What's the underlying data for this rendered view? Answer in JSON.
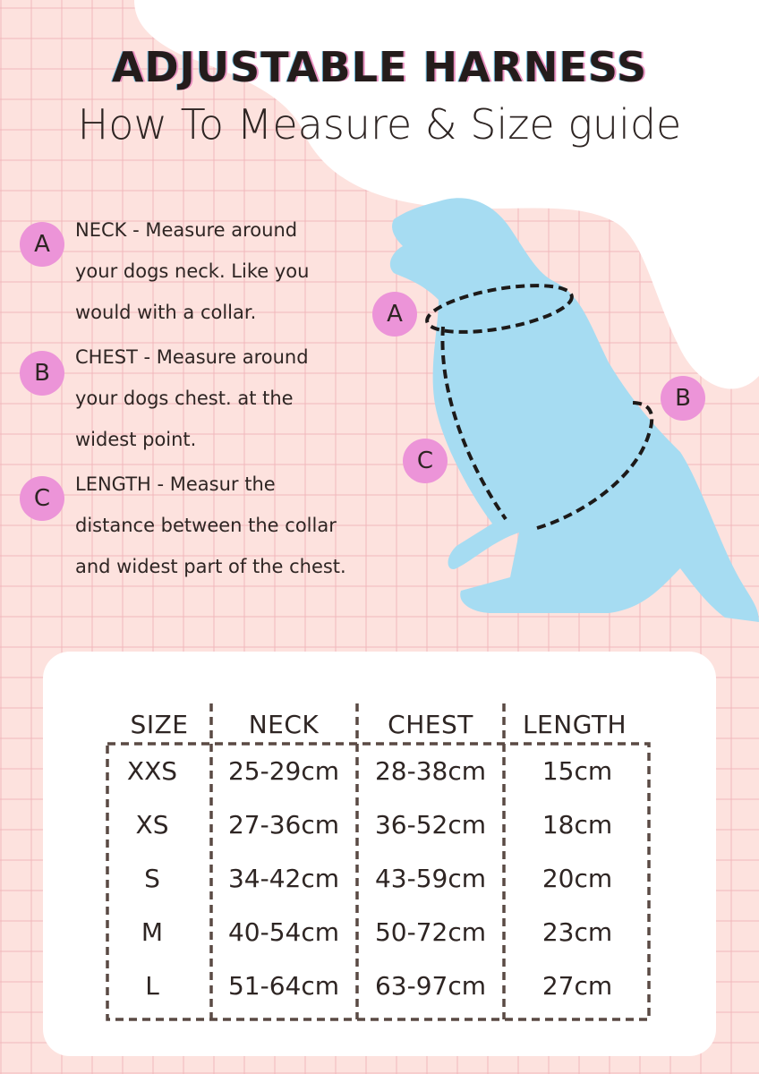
{
  "header": {
    "title": "ADJUSTABLE HARNESS",
    "subtitle": "How To Measure & Size guide"
  },
  "colors": {
    "background": "#fde2de",
    "badge": "#ec94d8",
    "dog": "#a6dcf2",
    "card": "#ffffff",
    "text": "#2e2523"
  },
  "instructions": [
    {
      "badge": "A",
      "lines": [
        "NECK - Measure around",
        "your dogs neck. Like you",
        "would with a collar."
      ]
    },
    {
      "badge": "B",
      "lines": [
        "CHEST - Measure around",
        "your dogs chest. at the",
        "widest point."
      ]
    },
    {
      "badge": "C",
      "lines": [
        "LENGTH - Measur the",
        "distance between the collar",
        "and widest part of the chest."
      ]
    }
  ],
  "diagram": {
    "labels": [
      "A",
      "B",
      "C"
    ],
    "icon": "dog-silhouette-icon"
  },
  "size_table": {
    "headers": [
      "SIZE",
      "NECK",
      "CHEST",
      "LENGTH"
    ],
    "rows": [
      [
        "XXS",
        "25-29cm",
        "28-38cm",
        "15cm"
      ],
      [
        "XS",
        "27-36cm",
        "36-52cm",
        "18cm"
      ],
      [
        "S",
        "34-42cm",
        "43-59cm",
        "20cm"
      ],
      [
        "M",
        "40-54cm",
        "50-72cm",
        "23cm"
      ],
      [
        "L",
        "51-64cm",
        "63-97cm",
        "27cm"
      ]
    ]
  }
}
